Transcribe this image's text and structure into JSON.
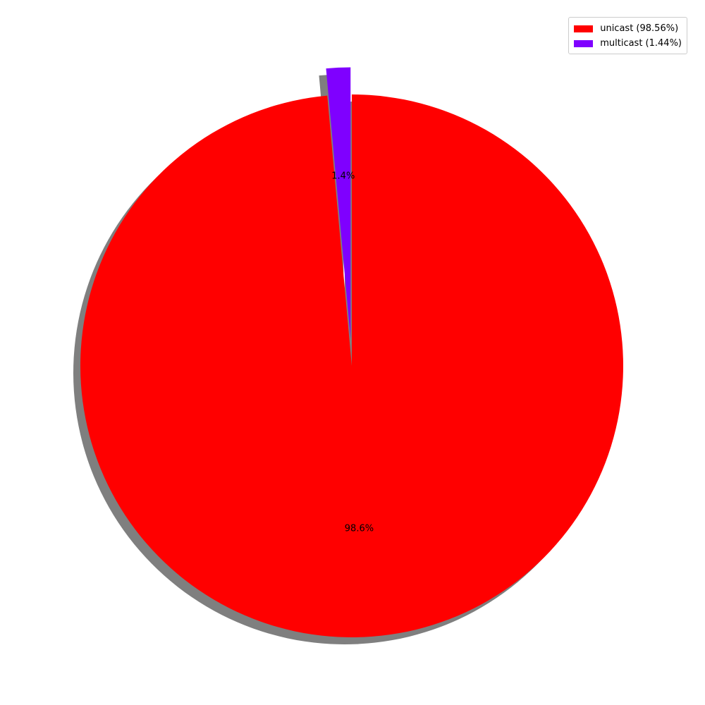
{
  "chart_data": {
    "type": "pie",
    "title": "",
    "start_angle_deg": 90,
    "counterclock": false,
    "shadow": true,
    "legend_position": "top-right",
    "slices": [
      {
        "label": "unicast (98.56%)",
        "value": 98.56,
        "autopct": "98.6%",
        "color": "#ff0000",
        "exploded": false
      },
      {
        "label": "multicast (1.44%)",
        "value": 1.44,
        "autopct": "1.4%",
        "color": "#7f00ff",
        "exploded": true
      }
    ]
  }
}
